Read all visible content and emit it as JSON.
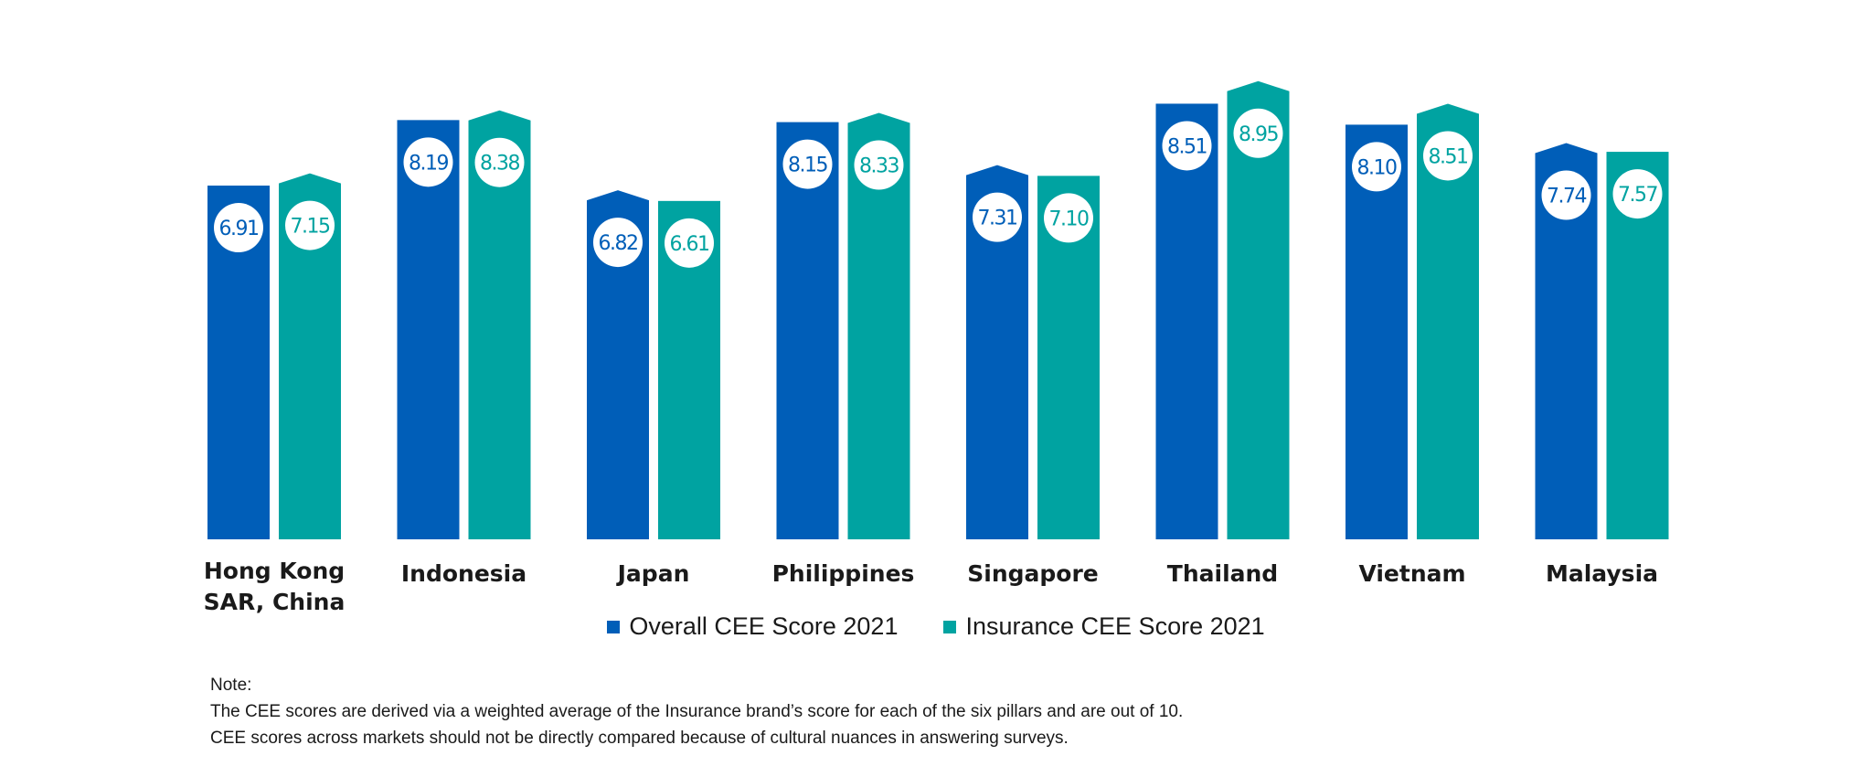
{
  "chart_data": {
    "type": "bar",
    "categories": [
      "Hong Kong\nSAR, China",
      "Indonesia",
      "Japan",
      "Philippines",
      "Singapore",
      "Thailand",
      "Vietnam",
      "Malaysia"
    ],
    "series": [
      {
        "name": "Overall CEE Score 2021",
        "color": "#005EB8",
        "values": [
          6.91,
          8.19,
          6.82,
          8.15,
          7.31,
          8.51,
          8.1,
          7.74
        ],
        "value_labels": [
          "6.91",
          "8.19",
          "6.82",
          "8.15",
          "7.31",
          "8.51",
          "8.10",
          "7.74"
        ]
      },
      {
        "name": "Insurance CEE Score 2021",
        "color": "#00A3A1",
        "values": [
          7.15,
          8.38,
          6.61,
          8.33,
          7.1,
          8.95,
          8.51,
          7.57
        ],
        "value_labels": [
          "7.15",
          "8.38",
          "6.61",
          "8.33",
          "7.10",
          "8.95",
          "8.51",
          "7.57"
        ]
      }
    ],
    "higher_bar_has_arrow_top": true,
    "ylim": [
      0,
      10
    ],
    "grid": false,
    "legend_position": "bottom"
  },
  "note": {
    "heading": "Note:",
    "line1": "The CEE scores are derived via a weighted average of the Insurance brand’s score for each of the six pillars and are out of 10.",
    "line2": "CEE scores across markets should not be directly compared because of cultural nuances in answering surveys."
  }
}
